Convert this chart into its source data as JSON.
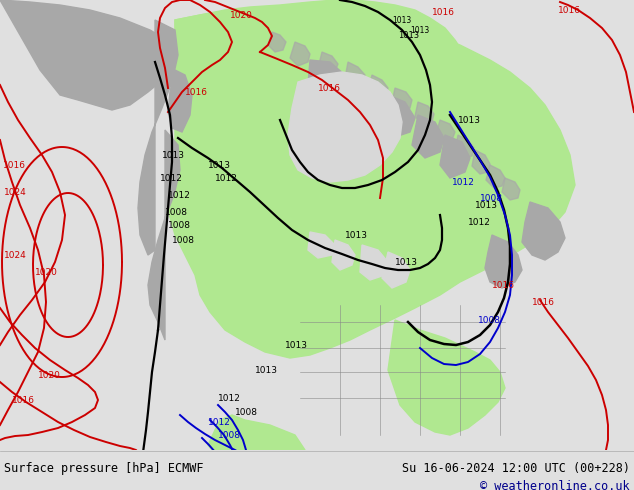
{
  "title_left": "Surface pressure [hPa] ECMWF",
  "title_right": "Su 16-06-2024 12:00 UTC (00+228)",
  "copyright": "© weatheronline.co.uk",
  "bg_color": "#e0e0e0",
  "ocean_color": "#d8d8d8",
  "land_green": "#b0e890",
  "land_gray": "#a8a8a8",
  "footer_bg": "#ffffff",
  "footer_text_color": "#000000",
  "copyright_color": "#00008B",
  "red": "#cc0000",
  "blue": "#0000cc",
  "black": "#000000"
}
